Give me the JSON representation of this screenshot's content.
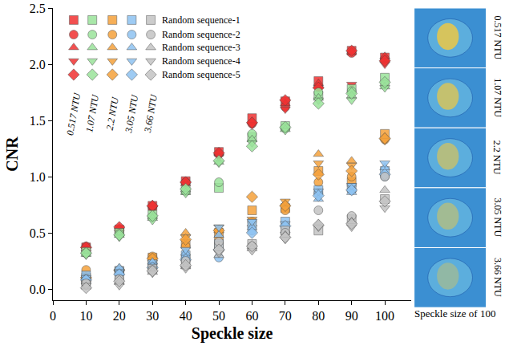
{
  "chart_data": {
    "type": "scatter",
    "x_label": "Speckle size",
    "y_label": "CNR",
    "image_caption": "Speckle size of 100",
    "x": [
      10,
      20,
      30,
      40,
      50,
      60,
      70,
      80,
      90,
      100
    ],
    "xlim": [
      0,
      108
    ],
    "xticks": [
      0,
      10,
      20,
      30,
      40,
      50,
      60,
      70,
      80,
      90,
      100
    ],
    "ylim": [
      -0.1,
      2.5
    ],
    "yticks": [
      {
        "value": 0,
        "label": "0.0"
      },
      0.5,
      {
        "value": 1,
        "label": "1.0"
      },
      1.5,
      {
        "value": 2,
        "label": "2.0"
      },
      2.5
    ],
    "grid": false,
    "legend": "upper left",
    "series": [
      {
        "name": "Random sequence-1",
        "group": "0.517 NTU",
        "color": "#f03232",
        "marker": "square",
        "values": [
          0.37,
          0.53,
          0.74,
          0.96,
          1.22,
          1.52,
          1.67,
          1.85,
          2.12,
          2.06
        ]
      },
      {
        "name": "Random sequence-2",
        "group": "0.517 NTU",
        "color": "#f03232",
        "marker": "circle",
        "values": [
          0.38,
          0.52,
          0.73,
          0.95,
          1.2,
          1.47,
          1.62,
          1.8,
          2.1,
          2.04
        ]
      },
      {
        "name": "Random sequence-3",
        "group": "0.517 NTU",
        "color": "#f03232",
        "marker": "triangle-up",
        "values": [
          0.36,
          0.54,
          0.75,
          0.94,
          1.21,
          1.49,
          1.65,
          1.83,
          2.11,
          2.07
        ]
      },
      {
        "name": "Random sequence-4",
        "group": "0.517 NTU",
        "color": "#f03232",
        "marker": "triangle-down",
        "values": [
          0.35,
          0.52,
          0.72,
          0.93,
          1.18,
          1.46,
          1.6,
          1.78,
          1.82,
          2.0
        ]
      },
      {
        "name": "Random sequence-5",
        "group": "0.517 NTU",
        "color": "#f03232",
        "marker": "diamond",
        "values": [
          0.37,
          0.55,
          0.74,
          0.95,
          1.21,
          1.48,
          1.68,
          1.79,
          2.12,
          2.03
        ]
      },
      {
        "name": "Random sequence-1",
        "group": "1.07 NTU",
        "color": "#9be39b",
        "marker": "square",
        "values": [
          0.33,
          0.5,
          0.66,
          0.88,
          0.9,
          1.35,
          1.45,
          1.72,
          1.78,
          1.88
        ]
      },
      {
        "name": "Random sequence-2",
        "group": "1.07 NTU",
        "color": "#9be39b",
        "marker": "circle",
        "values": [
          0.32,
          0.49,
          0.64,
          0.87,
          0.95,
          1.38,
          1.43,
          1.75,
          1.76,
          1.82
        ]
      },
      {
        "name": "Random sequence-3",
        "group": "1.07 NTU",
        "color": "#9be39b",
        "marker": "triangle-up",
        "values": [
          0.31,
          0.48,
          0.63,
          0.86,
          1.13,
          1.33,
          1.42,
          1.7,
          1.72,
          1.8
        ]
      },
      {
        "name": "Random sequence-4",
        "group": "1.07 NTU",
        "color": "#9be39b",
        "marker": "triangle-down",
        "values": [
          0.3,
          0.46,
          0.61,
          0.85,
          1.12,
          1.3,
          1.41,
          1.68,
          1.68,
          1.79
        ]
      },
      {
        "name": "Random sequence-5",
        "group": "1.07 NTU",
        "color": "#9be39b",
        "marker": "diamond",
        "values": [
          0.32,
          0.48,
          0.65,
          0.89,
          1.14,
          1.27,
          1.44,
          1.65,
          1.74,
          1.84
        ]
      },
      {
        "name": "Random sequence-1",
        "group": "2.2 NTU",
        "color": "#f5a23c",
        "marker": "square",
        "values": [
          0.1,
          0.16,
          0.28,
          0.4,
          0.5,
          0.7,
          0.72,
          1.05,
          0.95,
          1.38
        ]
      },
      {
        "name": "Random sequence-2",
        "group": "2.2 NTU",
        "color": "#f5a23c",
        "marker": "circle",
        "values": [
          0.17,
          0.15,
          0.29,
          0.38,
          0.45,
          0.6,
          0.7,
          0.95,
          1.0,
          1.33
        ]
      },
      {
        "name": "Random sequence-3",
        "group": "2.2 NTU",
        "color": "#f5a23c",
        "marker": "triangle-up",
        "values": [
          0.09,
          0.18,
          0.27,
          0.5,
          0.52,
          0.58,
          0.76,
          1.2,
          1.14,
          1.35
        ]
      },
      {
        "name": "Random sequence-4",
        "group": "2.2 NTU",
        "color": "#f5a23c",
        "marker": "triangle-down",
        "values": [
          0.08,
          0.14,
          0.26,
          0.46,
          0.55,
          0.62,
          0.78,
          1.12,
          1.1,
          1.32
        ]
      },
      {
        "name": "Random sequence-5",
        "group": "2.2 NTU",
        "color": "#f5a23c",
        "marker": "diamond",
        "values": [
          0.1,
          0.17,
          0.27,
          0.44,
          0.52,
          0.82,
          0.74,
          1.02,
          1.05,
          1.34
        ]
      },
      {
        "name": "Random sequence-1",
        "group": "3.05 NTU",
        "color": "#8ec3f2",
        "marker": "square",
        "values": [
          0.12,
          0.16,
          0.22,
          0.3,
          0.4,
          0.58,
          0.6,
          0.88,
          0.9,
          1.05
        ]
      },
      {
        "name": "Random sequence-2",
        "group": "3.05 NTU",
        "color": "#8ec3f2",
        "marker": "circle",
        "values": [
          0.09,
          0.14,
          0.2,
          0.28,
          0.28,
          0.52,
          0.55,
          0.85,
          0.88,
          1.0
        ]
      },
      {
        "name": "Random sequence-3",
        "group": "3.05 NTU",
        "color": "#8ec3f2",
        "marker": "triangle-up",
        "values": [
          0.07,
          0.19,
          0.24,
          0.32,
          0.48,
          0.55,
          0.52,
          0.8,
          0.86,
          1.08
        ]
      },
      {
        "name": "Random sequence-4",
        "group": "3.05 NTU",
        "color": "#8ec3f2",
        "marker": "triangle-down",
        "values": [
          0.1,
          0.15,
          0.21,
          0.35,
          0.55,
          0.6,
          0.58,
          0.87,
          0.92,
          1.12
        ]
      },
      {
        "name": "Random sequence-5",
        "group": "3.05 NTU",
        "color": "#8ec3f2",
        "marker": "diamond",
        "values": [
          0.08,
          0.13,
          0.19,
          0.26,
          0.35,
          0.5,
          0.56,
          0.83,
          0.88,
          1.02
        ]
      },
      {
        "name": "Random sequence-1",
        "group": "3.66 NTU",
        "color": "#c4c4c4",
        "marker": "square",
        "values": [
          0.04,
          0.08,
          0.18,
          0.22,
          0.38,
          0.4,
          0.52,
          0.52,
          0.62,
          0.8
        ]
      },
      {
        "name": "Random sequence-2",
        "group": "3.66 NTU",
        "color": "#c4c4c4",
        "marker": "circle",
        "values": [
          0.05,
          0.09,
          0.17,
          0.25,
          0.42,
          0.38,
          0.5,
          0.7,
          0.65,
          1.0
        ]
      },
      {
        "name": "Random sequence-3",
        "group": "3.66 NTU",
        "color": "#c4c4c4",
        "marker": "triangle-up",
        "values": [
          0.02,
          0.06,
          0.15,
          0.2,
          0.3,
          0.36,
          0.48,
          0.58,
          0.6,
          0.88
        ]
      },
      {
        "name": "Random sequence-4",
        "group": "3.66 NTU",
        "color": "#c4c4c4",
        "marker": "triangle-down",
        "values": [
          0.03,
          0.03,
          0.14,
          0.18,
          0.32,
          0.34,
          0.44,
          0.55,
          0.55,
          0.72
        ]
      },
      {
        "name": "Random sequence-5",
        "group": "3.66 NTU",
        "color": "#c4c4c4",
        "marker": "diamond",
        "values": [
          0.01,
          0.07,
          0.16,
          0.21,
          0.35,
          0.38,
          0.46,
          0.57,
          0.58,
          0.78
        ]
      }
    ]
  }
}
